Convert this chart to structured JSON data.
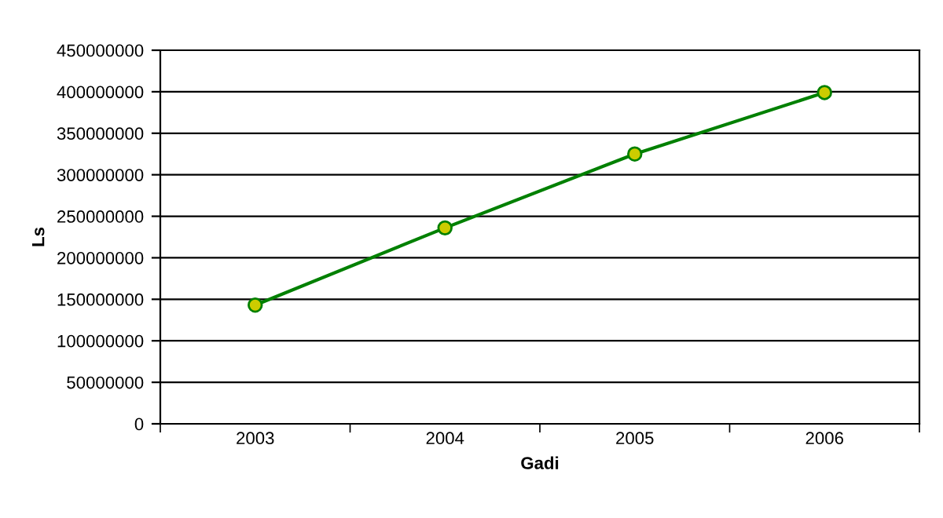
{
  "chart_data": {
    "type": "line",
    "xlabel": "Gadi",
    "ylabel": "Ls",
    "categories": [
      "2003",
      "2004",
      "2005",
      "2006"
    ],
    "series": [
      {
        "color": "#008000",
        "values": [
          143000000,
          236000000,
          325000000,
          399000000
        ]
      }
    ],
    "ylim": [
      0,
      450000000
    ],
    "yticks": [
      0,
      50000000,
      100000000,
      150000000,
      200000000,
      250000000,
      300000000,
      350000000,
      400000000,
      450000000
    ],
    "grid": "y",
    "marker": "circle",
    "line_style": "solid"
  }
}
